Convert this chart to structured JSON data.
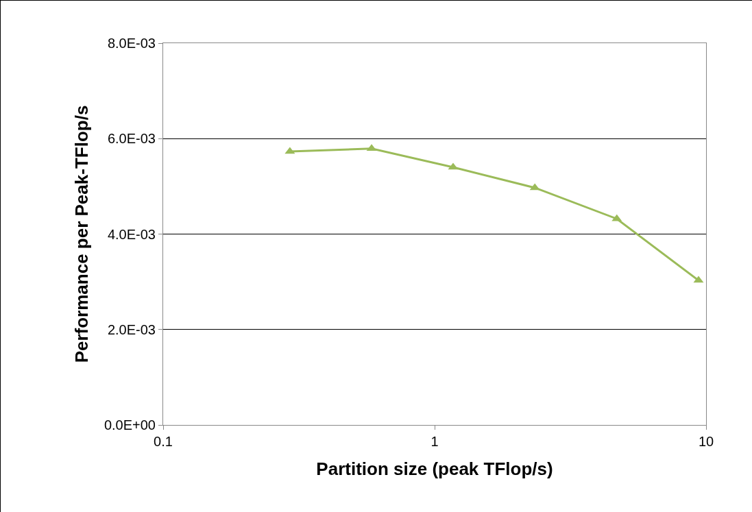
{
  "chart_data": {
    "type": "line",
    "xlabel": "Partition size (peak TFlop/s)",
    "ylabel": "Performance per Peak-TFlop/s",
    "x": [
      0.293,
      0.586,
      1.17,
      2.34,
      4.69,
      9.38
    ],
    "series": [
      {
        "color": "#9bbb59",
        "values": [
          0.00573,
          0.00579,
          0.0054,
          0.00497,
          0.00432,
          0.00303
        ]
      }
    ],
    "log": "x",
    "xlim": [
      0.1,
      10
    ],
    "xticks": [
      0.1,
      1,
      10
    ],
    "ylim": [
      0,
      0.008
    ],
    "yticks": [
      {
        "value": 0,
        "label": "0.0E+00"
      },
      {
        "value": 0.002,
        "label": "2.0E-03"
      },
      {
        "value": 0.004,
        "label": "4.0E-03"
      },
      {
        "value": 0.006,
        "label": "6.0E-03"
      },
      {
        "value": 0.008,
        "label": "8.0E-03"
      }
    ],
    "grid": "y",
    "marker": "triangle",
    "line_style": "solid"
  }
}
